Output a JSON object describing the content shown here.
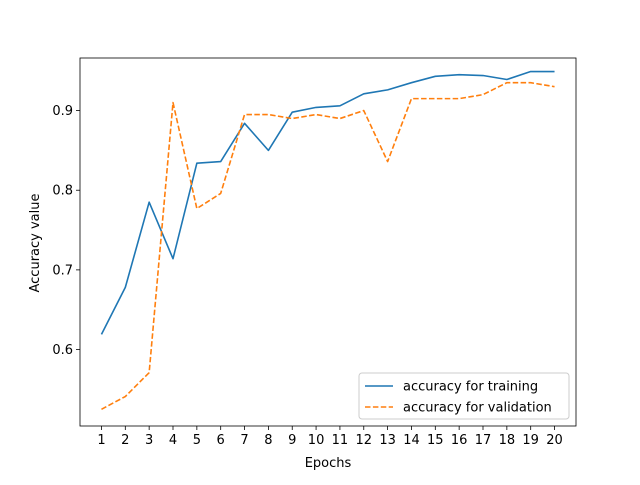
{
  "chart_data": {
    "type": "line",
    "xlabel": "Epochs",
    "ylabel": "Accuracy value",
    "x": [
      1,
      2,
      3,
      4,
      5,
      6,
      7,
      8,
      9,
      10,
      11,
      12,
      13,
      14,
      15,
      16,
      17,
      18,
      19,
      20
    ],
    "xticks": [
      1,
      2,
      3,
      4,
      5,
      6,
      7,
      8,
      9,
      10,
      11,
      12,
      13,
      14,
      15,
      16,
      17,
      18,
      19,
      20
    ],
    "xlim": [
      0.1,
      20.9
    ],
    "yticks": [
      "0.6",
      "0.7",
      "0.8",
      "0.9"
    ],
    "ylim": [
      0.504,
      0.966
    ],
    "grid": false,
    "legend_position": "lower-right",
    "series": [
      {
        "name": "accuracy for training",
        "color": "#1f77b4",
        "dash": "solid",
        "values": [
          0.619,
          0.678,
          0.785,
          0.714,
          0.834,
          0.836,
          0.884,
          0.85,
          0.898,
          0.904,
          0.906,
          0.921,
          0.926,
          0.935,
          0.943,
          0.945,
          0.944,
          0.939,
          0.949,
          0.949
        ]
      },
      {
        "name": "accuracy for validation",
        "color": "#ff7f0e",
        "dash": "dashed",
        "values": [
          0.525,
          0.541,
          0.571,
          0.91,
          0.777,
          0.796,
          0.895,
          0.895,
          0.89,
          0.895,
          0.89,
          0.9,
          0.836,
          0.915,
          0.915,
          0.915,
          0.92,
          0.935,
          0.935,
          0.93
        ]
      }
    ]
  }
}
